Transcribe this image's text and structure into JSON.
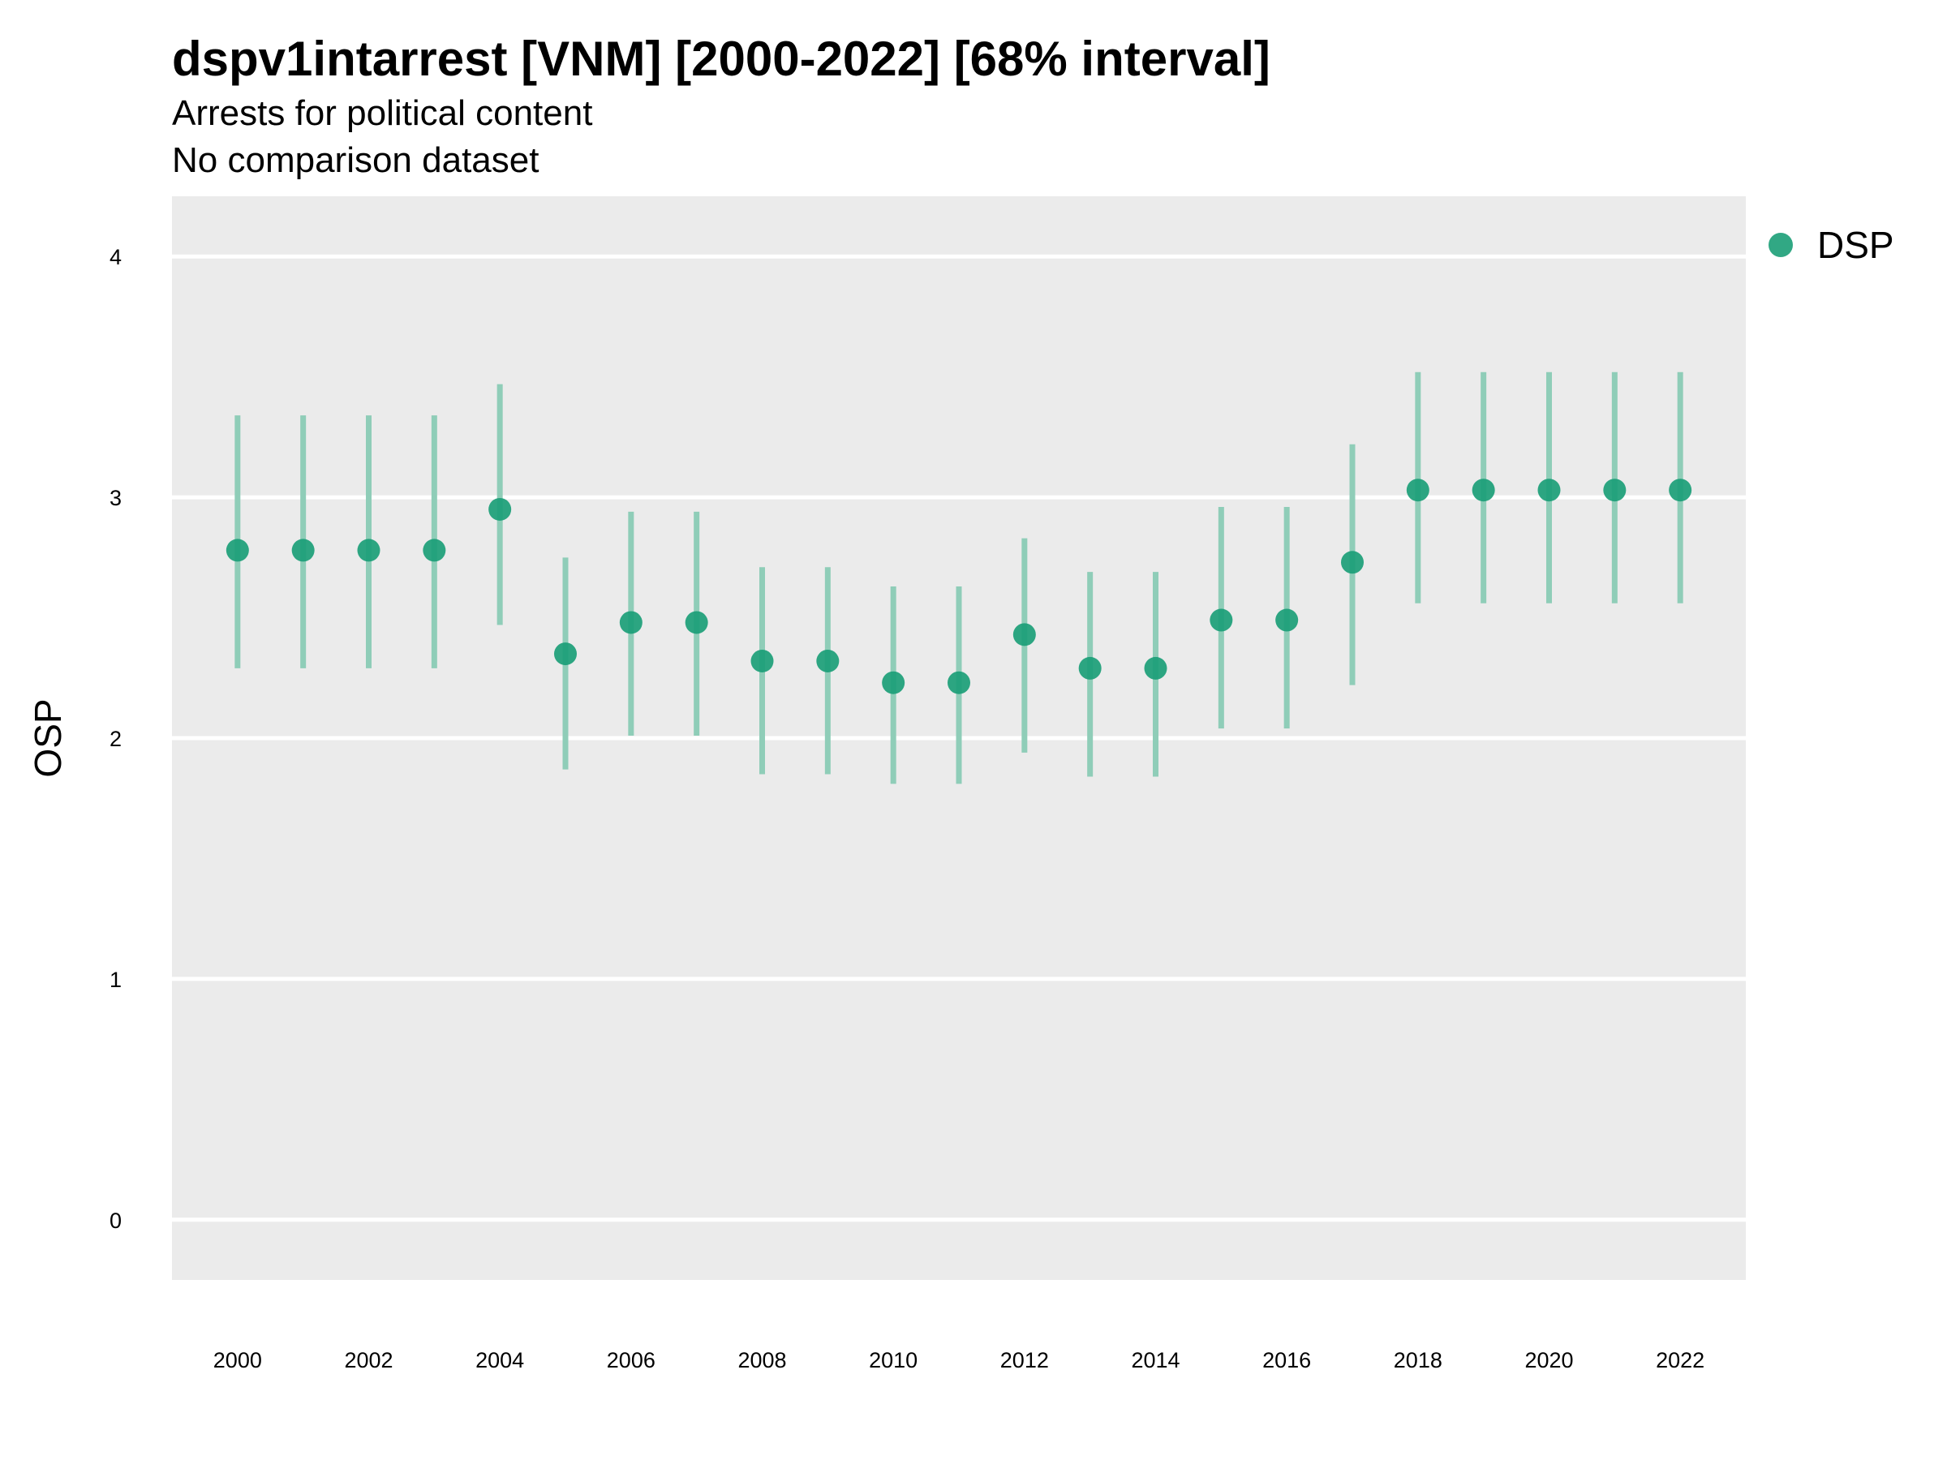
{
  "title": "dspv1intarrest [VNM] [2000-2022] [68% interval]",
  "subtitle": "Arrests for political content",
  "caption": "No comparison dataset",
  "colors": {
    "panel": "#ebebeb",
    "grid": "#ffffff",
    "series": "#1b9e77",
    "interval": "#8fcdb8"
  },
  "chart_data": {
    "type": "scatter",
    "interval_label": "68% interval",
    "xlabel": "",
    "ylabel": "OSP",
    "x_ticks": [
      "2000",
      "2002",
      "2004",
      "2006",
      "2008",
      "2010",
      "2012",
      "2014",
      "2016",
      "2018",
      "2020",
      "2022"
    ],
    "y_ticks": [
      "0",
      "1",
      "2",
      "3",
      "4"
    ],
    "xlim": [
      1999,
      2023
    ],
    "ylim": [
      -0.25,
      4.25
    ],
    "grid": true,
    "legend_position": "right",
    "series": [
      {
        "name": "DSP",
        "x": [
          2000,
          2001,
          2002,
          2003,
          2004,
          2005,
          2006,
          2007,
          2008,
          2009,
          2010,
          2011,
          2012,
          2013,
          2014,
          2015,
          2016,
          2017,
          2018,
          2019,
          2020,
          2021,
          2022
        ],
        "y": [
          2.78,
          2.78,
          2.78,
          2.78,
          2.95,
          2.35,
          2.48,
          2.48,
          2.32,
          2.32,
          2.23,
          2.23,
          2.43,
          2.29,
          2.29,
          2.49,
          2.49,
          2.73,
          3.03,
          3.03,
          3.03,
          3.03,
          3.03
        ],
        "lower": [
          2.29,
          2.29,
          2.29,
          2.29,
          2.47,
          1.87,
          2.01,
          2.01,
          1.85,
          1.85,
          1.81,
          1.81,
          1.94,
          1.84,
          1.84,
          2.04,
          2.04,
          2.22,
          2.56,
          2.56,
          2.56,
          2.56,
          2.56
        ],
        "upper": [
          3.34,
          3.34,
          3.34,
          3.34,
          3.47,
          2.75,
          2.94,
          2.94,
          2.71,
          2.71,
          2.63,
          2.63,
          2.83,
          2.69,
          2.69,
          2.96,
          2.96,
          3.22,
          3.52,
          3.52,
          3.52,
          3.52,
          3.52
        ]
      }
    ]
  }
}
